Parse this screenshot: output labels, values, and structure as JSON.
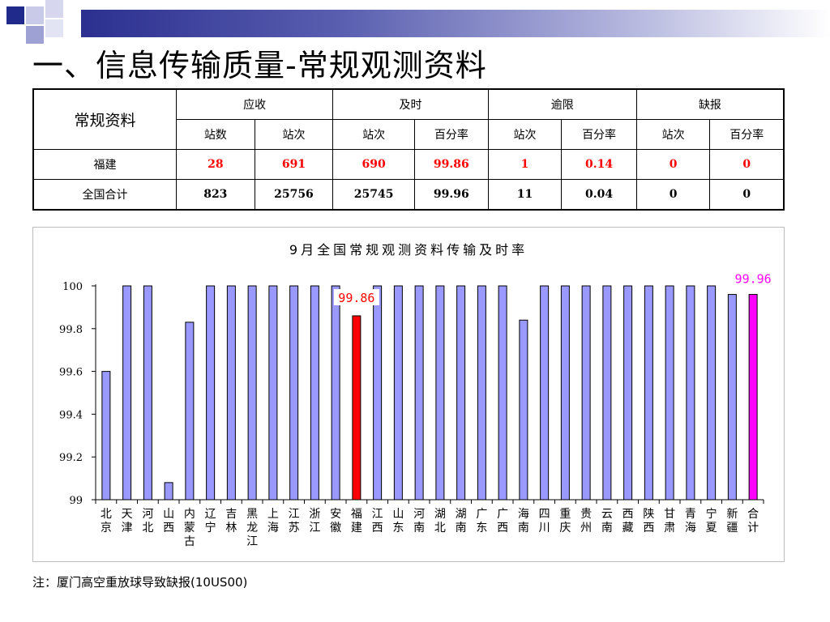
{
  "title": "一、信息传输质量-常规观测资料",
  "table": {
    "row_header": "常规资料",
    "groups": [
      "应收",
      "及时",
      "逾限",
      "缺报"
    ],
    "subheaders": [
      "站数",
      "站次",
      "站次",
      "百分率",
      "站次",
      "百分率",
      "站次",
      "百分率"
    ],
    "rows": [
      {
        "name": "福建",
        "values": [
          "28",
          "691",
          "690",
          "99.86",
          "1",
          "0.14",
          "0",
          "0"
        ]
      },
      {
        "name": "全国合计",
        "values": [
          "823",
          "25756",
          "25745",
          "99.96",
          "11",
          "0.04",
          "0",
          "0"
        ]
      }
    ]
  },
  "colors": {
    "bar": "#9999ff",
    "highlight": "#ff0000",
    "total": "#ff00ff",
    "red_text": "#ff0000",
    "header_band": "#2b2f8f"
  },
  "chart_data": {
    "type": "bar",
    "title": "9月全国常规观测资料传输及时率",
    "categories": [
      "北京",
      "天津",
      "河北",
      "山西",
      "内蒙古",
      "辽宁",
      "吉林",
      "黑龙江",
      "上海",
      "江苏",
      "浙江",
      "安徽",
      "福建",
      "江西",
      "山东",
      "河南",
      "湖北",
      "湖南",
      "广东",
      "广西",
      "海南",
      "四川",
      "重庆",
      "贵州",
      "云南",
      "西藏",
      "陕西",
      "甘肃",
      "青海",
      "宁夏",
      "新疆",
      "合计"
    ],
    "values": [
      99.6,
      100,
      100,
      99.08,
      99.83,
      100,
      100,
      100,
      100,
      100,
      100,
      100,
      99.86,
      100,
      100,
      100,
      100,
      100,
      100,
      100,
      99.84,
      100,
      100,
      100,
      100,
      100,
      100,
      100,
      100,
      100,
      99.96,
      99.96
    ],
    "highlight_index": 12,
    "total_index": 31,
    "ylim": [
      99,
      100
    ],
    "yticks": [
      "99",
      "99.2",
      "99.4",
      "99.6",
      "99.8",
      "100"
    ],
    "annotations": [
      {
        "category": "福建",
        "text": "99.86"
      },
      {
        "category": "合计",
        "text": "99.96"
      }
    ],
    "grid": false,
    "legend": "none"
  },
  "note": "注：厦门高空重放球导致缺报(10US00)"
}
